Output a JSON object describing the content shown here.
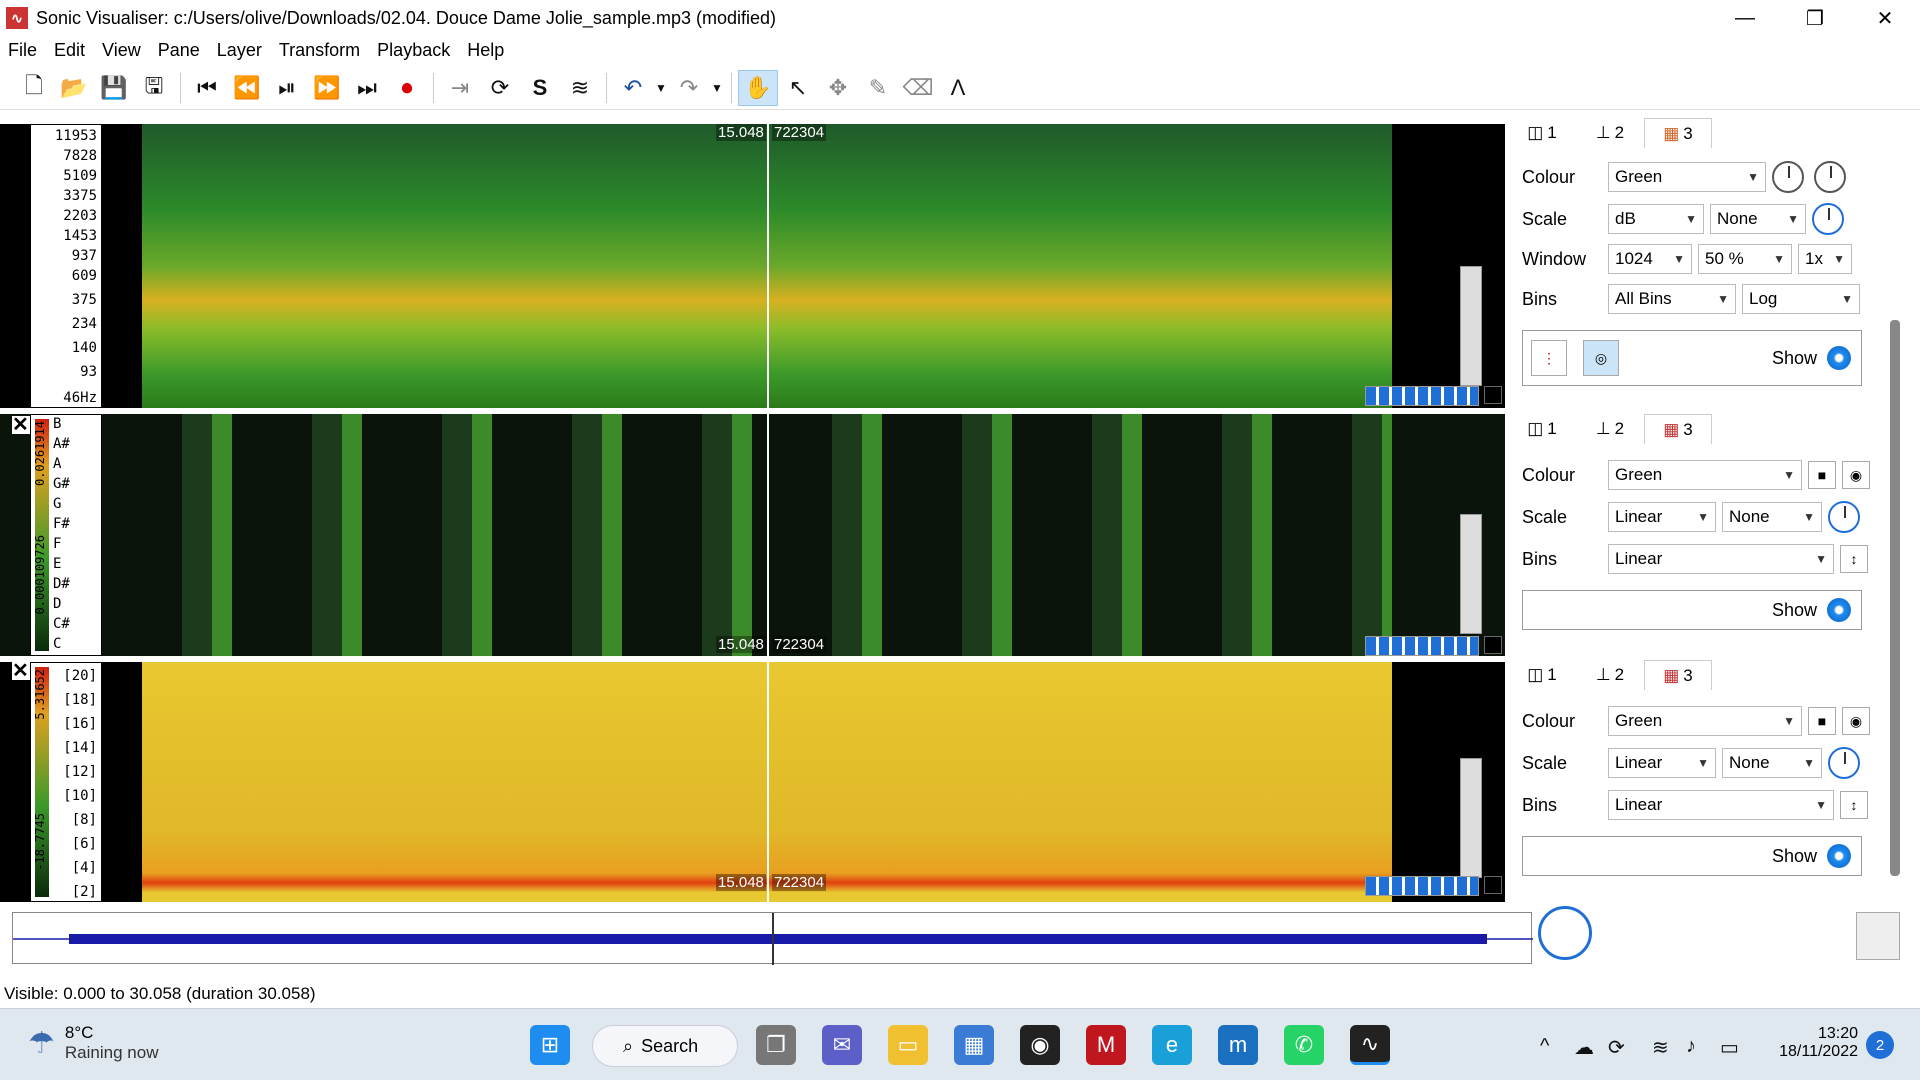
{
  "window": {
    "title": "Sonic Visualiser: c:/Users/olive/Downloads/02.04. Douce Dame Jolie_sample.mp3 (modified)",
    "app_icon": "sonic-visualiser-icon",
    "minimize": "—",
    "maximize": "❐",
    "close": "✕"
  },
  "menu": [
    "File",
    "Edit",
    "View",
    "Pane",
    "Layer",
    "Transform",
    "Playback",
    "Help"
  ],
  "toolbar": {
    "new": "🗋",
    "open": "📂",
    "save": "💾",
    "save_session": "🖫",
    "rewind_start": "⏮",
    "rewind": "⏪",
    "play_pause": "⏯",
    "forward": "⏩",
    "forward_end": "⏭",
    "record": "⏺",
    "constrain": "⇥",
    "loop": "⟳",
    "solo": "S",
    "align": "≋",
    "undo": "↶",
    "redo": "↷",
    "navigate": "✋",
    "select": "↖",
    "move": "✥",
    "draw": "✎",
    "erase": "⌫",
    "measure": "Λ"
  },
  "pane1": {
    "labels": [
      "11953",
      "7828",
      "5109",
      "3375",
      "2203",
      "1453",
      "937",
      "609",
      "375",
      "234",
      "140",
      "93",
      "46Hz"
    ],
    "readout_time": "15.048",
    "readout_frame": "722304"
  },
  "pane2": {
    "labels": [
      "B",
      "A#",
      "A",
      "G#",
      "G",
      "F#",
      "F",
      "E",
      "D#",
      "D",
      "C#",
      "C"
    ],
    "range_top": "0.0261914",
    "range_bottom": "0.000109726",
    "readout_time": "15.048",
    "readout_frame": "722304",
    "close": "✕"
  },
  "pane3": {
    "labels": [
      "[20]",
      "[18]",
      "[16]",
      "[14]",
      "[12]",
      "[10]",
      "[8]",
      "[6]",
      "[4]",
      "[2]"
    ],
    "range_top": "5.31652",
    "range_bottom": "-18.7745",
    "readout_time": "15.048",
    "readout_frame": "722304",
    "close": "✕"
  },
  "props1": {
    "tabs": [
      "1",
      "2",
      "3"
    ],
    "colour_label": "Colour",
    "colour": "Green",
    "scale_label": "Scale",
    "scale": "dB",
    "scale2": "None",
    "window_label": "Window",
    "window": "1024",
    "overlap": "50 %",
    "oversample": "1x",
    "bins_label": "Bins",
    "bins": "All Bins",
    "bins2": "Log",
    "show": "Show"
  },
  "props2": {
    "tabs": [
      "1",
      "2",
      "3"
    ],
    "colour_label": "Colour",
    "colour": "Green",
    "scale_label": "Scale",
    "scale": "Linear",
    "scale2": "None",
    "bins_label": "Bins",
    "bins": "Linear",
    "show": "Show"
  },
  "props3": {
    "tabs": [
      "1",
      "2",
      "3"
    ],
    "colour_label": "Colour",
    "colour": "Green",
    "scale_label": "Scale",
    "scale": "Linear",
    "scale2": "None",
    "bins_label": "Bins",
    "bins": "Linear",
    "show": "Show"
  },
  "status": "Visible: 0.000 to 30.058 (duration 30.058)",
  "taskbar": {
    "temp": "8°C",
    "weather": "Raining now",
    "search": "Search",
    "time": "13:20",
    "date": "18/11/2022",
    "notifications": "2"
  },
  "colors": {
    "spectrogram_low": "#2a7a1a",
    "spectrogram_high": "#f0b020",
    "chroma_dark": "#101a10",
    "mfcc": "#e8c030",
    "accent": "#1f6fd6"
  }
}
